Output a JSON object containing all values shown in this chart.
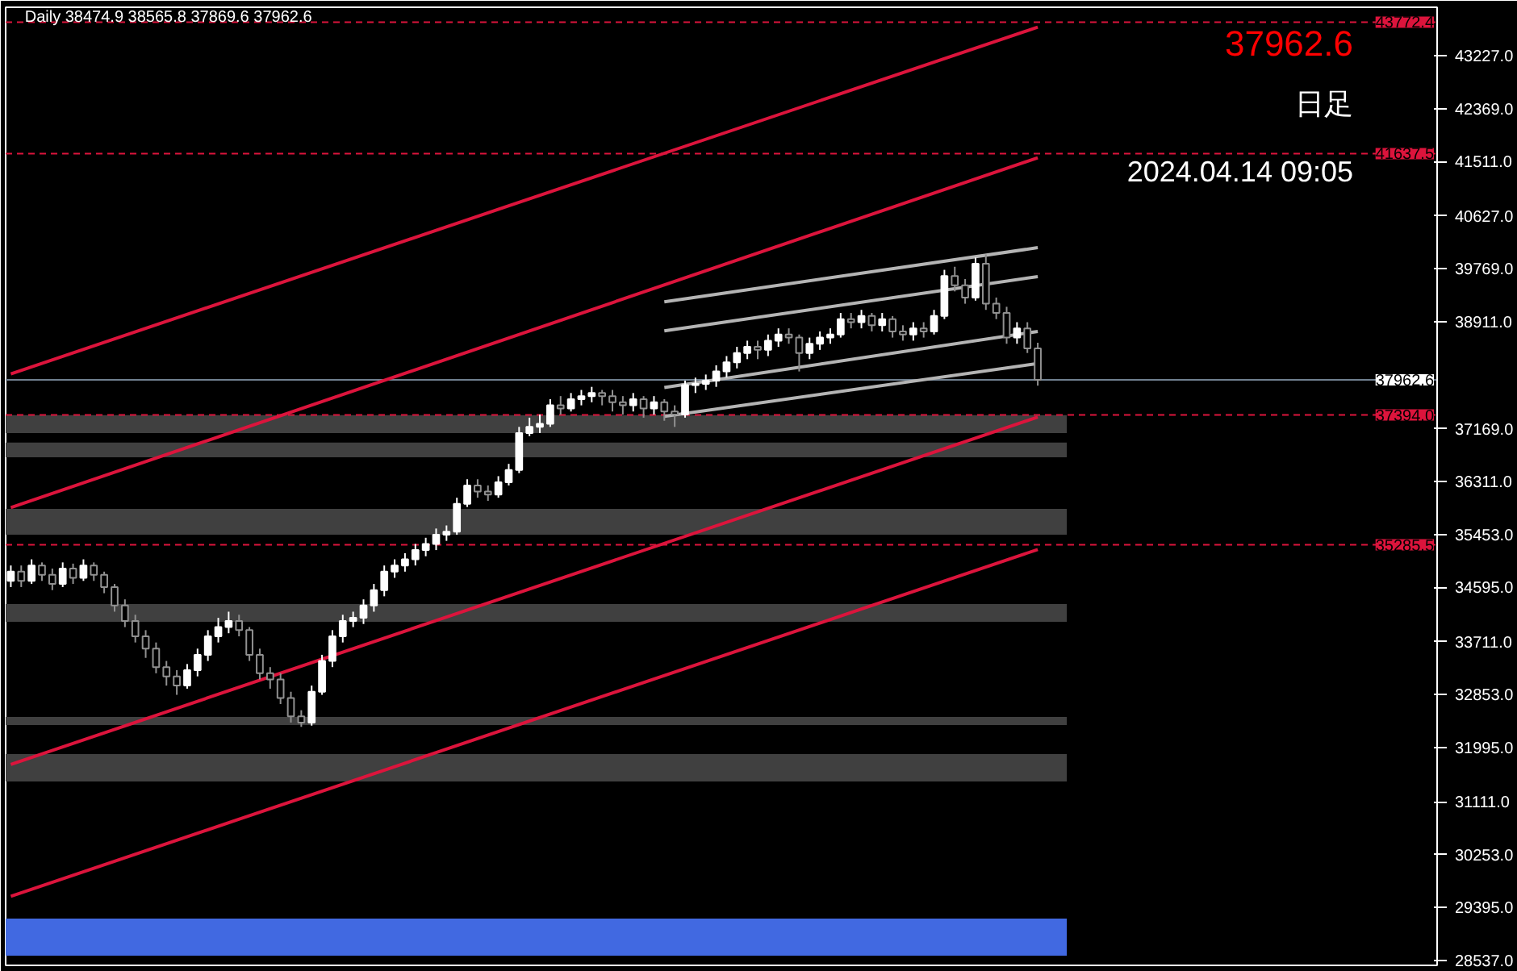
{
  "chart_data": {
    "type": "candlestick",
    "title": "Daily  38474.9 38565.8 37869.6 37962.6",
    "annotations": [
      "37962.6",
      "日足",
      "2024.04.14 09:05"
    ],
    "categories": [
      null,
      null,
      null,
      null,
      null,
      null,
      null,
      null,
      null,
      null,
      null,
      null,
      null,
      null,
      null,
      null,
      null,
      null,
      null,
      null,
      null,
      null,
      null,
      null,
      null,
      null,
      null,
      null,
      null,
      null,
      null,
      null,
      null,
      null,
      null,
      null,
      null,
      null,
      null,
      null,
      null,
      null,
      null,
      null,
      null,
      null,
      null,
      null,
      null,
      null,
      null,
      null,
      null,
      null,
      null,
      null,
      null,
      null,
      null,
      null,
      null,
      null,
      null,
      null,
      null,
      null,
      null,
      null,
      null,
      null,
      null,
      null,
      null,
      null,
      null,
      null,
      null,
      null,
      null,
      null,
      null,
      null,
      null,
      null,
      null,
      null,
      null,
      null,
      null,
      null,
      null,
      null,
      null,
      null,
      null,
      null,
      null,
      null,
      null,
      null,
      null,
      null,
      null,
      null,
      null,
      null,
      null,
      null,
      null,
      null,
      null,
      null,
      null,
      null,
      null,
      null,
      null,
      null,
      null,
      null,
      null,
      null,
      null,
      null,
      null,
      null,
      null,
      null,
      null,
      null,
      null,
      null,
      null,
      null,
      null,
      null,
      null,
      null
    ],
    "ohlc": [
      [
        34700,
        34950,
        34600,
        34850
      ],
      [
        34850,
        34950,
        34600,
        34700
      ],
      [
        34700,
        35050,
        34650,
        34950
      ],
      [
        34950,
        35000,
        34700,
        34800
      ],
      [
        34800,
        34900,
        34550,
        34650
      ],
      [
        34650,
        35000,
        34600,
        34900
      ],
      [
        34900,
        34980,
        34650,
        34750
      ],
      [
        34750,
        35050,
        34700,
        34950
      ],
      [
        34950,
        35000,
        34700,
        34800
      ],
      [
        34800,
        34850,
        34500,
        34600
      ],
      [
        34600,
        34650,
        34200,
        34300
      ],
      [
        34300,
        34400,
        33950,
        34050
      ],
      [
        34050,
        34150,
        33700,
        33800
      ],
      [
        33800,
        33900,
        33450,
        33600
      ],
      [
        33600,
        33700,
        33200,
        33300
      ],
      [
        33300,
        33400,
        33000,
        33150
      ],
      [
        33150,
        33250,
        32850,
        33000
      ],
      [
        33000,
        33350,
        32950,
        33250
      ],
      [
        33250,
        33600,
        33150,
        33500
      ],
      [
        33500,
        33900,
        33400,
        33800
      ],
      [
        33800,
        34100,
        33700,
        33950
      ],
      [
        33950,
        34200,
        33850,
        34050
      ],
      [
        34050,
        34150,
        33800,
        33900
      ],
      [
        33900,
        33950,
        33400,
        33500
      ],
      [
        33500,
        33600,
        33100,
        33200
      ],
      [
        33200,
        33300,
        32950,
        33100
      ],
      [
        33100,
        33200,
        32700,
        32800
      ],
      [
        32800,
        32900,
        32400,
        32500
      ],
      [
        32500,
        32600,
        32330,
        32400
      ],
      [
        32400,
        33000,
        32350,
        32900
      ],
      [
        32900,
        33500,
        32850,
        33400
      ],
      [
        33400,
        33900,
        33300,
        33800
      ],
      [
        33800,
        34150,
        33700,
        34050
      ],
      [
        34050,
        34200,
        33950,
        34100
      ],
      [
        34100,
        34400,
        34000,
        34300
      ],
      [
        34300,
        34650,
        34200,
        34550
      ],
      [
        34550,
        34950,
        34450,
        34850
      ],
      [
        34850,
        35050,
        34750,
        34950
      ],
      [
        34950,
        35150,
        34850,
        35050
      ],
      [
        35050,
        35300,
        34950,
        35200
      ],
      [
        35200,
        35400,
        35100,
        35300
      ],
      [
        35300,
        35550,
        35200,
        35450
      ],
      [
        35450,
        35600,
        35350,
        35500
      ],
      [
        35500,
        36050,
        35450,
        35950
      ],
      [
        35950,
        36350,
        35900,
        36250
      ],
      [
        36250,
        36350,
        36050,
        36150
      ],
      [
        36150,
        36250,
        36000,
        36100
      ],
      [
        36100,
        36400,
        36050,
        36300
      ],
      [
        36300,
        36600,
        36250,
        36500
      ],
      [
        36500,
        37200,
        36450,
        37100
      ],
      [
        37100,
        37350,
        37050,
        37200
      ],
      [
        37200,
        37400,
        37100,
        37250
      ],
      [
        37250,
        37650,
        37200,
        37550
      ],
      [
        37550,
        37700,
        37400,
        37500
      ],
      [
        37500,
        37750,
        37450,
        37650
      ],
      [
        37650,
        37800,
        37550,
        37700
      ],
      [
        37700,
        37850,
        37600,
        37750
      ],
      [
        37750,
        37800,
        37550,
        37700
      ],
      [
        37700,
        37800,
        37450,
        37600
      ],
      [
        37600,
        37700,
        37400,
        37550
      ],
      [
        37550,
        37750,
        37450,
        37650
      ],
      [
        37650,
        37700,
        37350,
        37500
      ],
      [
        37500,
        37700,
        37400,
        37600
      ],
      [
        37600,
        37650,
        37300,
        37450
      ],
      [
        37450,
        37550,
        37200,
        37400
      ],
      [
        37400,
        37950,
        37350,
        37880
      ],
      [
        37880,
        38000,
        37750,
        37900
      ],
      [
        37900,
        38050,
        37800,
        37950
      ],
      [
        37950,
        38200,
        37850,
        38100
      ],
      [
        38100,
        38350,
        38000,
        38250
      ],
      [
        38250,
        38500,
        38150,
        38400
      ],
      [
        38400,
        38600,
        38300,
        38500
      ],
      [
        38500,
        38600,
        38300,
        38450
      ],
      [
        38450,
        38700,
        38350,
        38600
      ],
      [
        38600,
        38800,
        38500,
        38700
      ],
      [
        38700,
        38800,
        38550,
        38650
      ],
      [
        38650,
        38700,
        38100,
        38400
      ],
      [
        38400,
        38650,
        38300,
        38550
      ],
      [
        38550,
        38750,
        38450,
        38650
      ],
      [
        38650,
        38800,
        38550,
        38700
      ],
      [
        38700,
        39050,
        38650,
        38950
      ],
      [
        38950,
        39050,
        38800,
        38900
      ],
      [
        38900,
        39100,
        38800,
        39000
      ],
      [
        39000,
        39050,
        38750,
        38850
      ],
      [
        38850,
        39050,
        38750,
        38950
      ],
      [
        38950,
        39000,
        38650,
        38750
      ],
      [
        38750,
        38850,
        38600,
        38700
      ],
      [
        38700,
        38900,
        38600,
        38800
      ],
      [
        38800,
        38900,
        38650,
        38750
      ],
      [
        38750,
        39100,
        38700,
        39000
      ],
      [
        39000,
        39750,
        38950,
        39650
      ],
      [
        39650,
        39800,
        39400,
        39500
      ],
      [
        39500,
        39600,
        39200,
        39300
      ],
      [
        39300,
        39950,
        39250,
        39850
      ],
      [
        39850,
        40000,
        39100,
        39200
      ],
      [
        39200,
        39300,
        38950,
        39050
      ],
      [
        39050,
        39150,
        38550,
        38650
      ],
      [
        38650,
        38900,
        38550,
        38800
      ],
      [
        38800,
        38900,
        38400,
        38474.9
      ],
      [
        38474.9,
        38565.8,
        37869.6,
        37962.6
      ],
      null,
      null,
      null,
      null,
      null,
      null,
      null,
      null,
      null,
      null,
      null,
      null,
      null,
      null,
      null,
      null,
      null,
      null,
      null,
      null,
      null,
      null,
      null,
      null,
      null,
      null,
      null,
      null,
      null,
      null,
      null,
      null,
      null,
      null,
      null,
      null,
      null,
      null
    ],
    "series": [
      {
        "type": "line",
        "color": "#dc143c",
        "values": [
          38060,
          null,
          null,
          null,
          null,
          null,
          null,
          null,
          null,
          null,
          null,
          null,
          null,
          null,
          null,
          null,
          null,
          null,
          null,
          null,
          null,
          null,
          null,
          null,
          null,
          null,
          null,
          null,
          null,
          null,
          null,
          null,
          null,
          null,
          null,
          null,
          null,
          null,
          null,
          null,
          null,
          null,
          null,
          null,
          null,
          null,
          null,
          null,
          null,
          null,
          null,
          null,
          null,
          null,
          null,
          null,
          null,
          null,
          null,
          null,
          null,
          null,
          null,
          null,
          null,
          null,
          null,
          null,
          null,
          null,
          null,
          null,
          null,
          null,
          null,
          null,
          null,
          null,
          null,
          null,
          null,
          null,
          null,
          null,
          null,
          null,
          null,
          null,
          null,
          null,
          null,
          null,
          null,
          null,
          null,
          null,
          null,
          null,
          null,
          43690,
          null,
          null,
          null,
          null,
          null,
          null,
          null,
          null,
          null,
          null,
          null,
          null,
          null,
          null,
          null,
          null,
          null,
          null,
          null,
          null,
          null,
          null,
          null,
          null,
          null,
          null,
          null,
          null,
          null,
          null,
          null,
          null,
          null,
          null,
          null,
          null,
          null,
          null
        ]
      },
      {
        "type": "line",
        "color": "#dc143c",
        "values": [
          35890,
          null,
          null,
          null,
          null,
          null,
          null,
          null,
          null,
          null,
          null,
          null,
          null,
          null,
          null,
          null,
          null,
          null,
          null,
          null,
          null,
          null,
          null,
          null,
          null,
          null,
          null,
          null,
          null,
          null,
          null,
          null,
          null,
          null,
          null,
          null,
          null,
          null,
          null,
          null,
          null,
          null,
          null,
          null,
          null,
          null,
          null,
          null,
          null,
          null,
          null,
          null,
          null,
          null,
          null,
          null,
          null,
          null,
          null,
          null,
          null,
          null,
          null,
          null,
          null,
          null,
          null,
          null,
          null,
          null,
          null,
          null,
          null,
          null,
          null,
          null,
          null,
          null,
          null,
          null,
          null,
          null,
          null,
          null,
          null,
          null,
          null,
          null,
          null,
          null,
          null,
          null,
          null,
          null,
          null,
          null,
          null,
          null,
          null,
          41570,
          null,
          null,
          null,
          null,
          null,
          null,
          null,
          null,
          null,
          null,
          null,
          null,
          null,
          null,
          null,
          null,
          null,
          null,
          null,
          null,
          null,
          null,
          null,
          null,
          null,
          null,
          null,
          null,
          null,
          null,
          null,
          null,
          null,
          null,
          null,
          null,
          null,
          null
        ]
      },
      {
        "type": "line",
        "color": "#dc143c",
        "values": [
          31720,
          null,
          null,
          null,
          null,
          null,
          null,
          null,
          null,
          null,
          null,
          null,
          null,
          null,
          null,
          null,
          null,
          null,
          null,
          null,
          null,
          null,
          null,
          null,
          null,
          null,
          null,
          null,
          null,
          null,
          null,
          null,
          null,
          null,
          null,
          null,
          null,
          null,
          null,
          null,
          null,
          null,
          null,
          null,
          null,
          null,
          null,
          null,
          null,
          null,
          null,
          null,
          null,
          null,
          null,
          null,
          null,
          null,
          null,
          null,
          null,
          null,
          null,
          null,
          null,
          null,
          null,
          null,
          null,
          null,
          null,
          null,
          null,
          null,
          null,
          null,
          null,
          null,
          null,
          null,
          null,
          null,
          null,
          null,
          null,
          null,
          null,
          null,
          null,
          null,
          null,
          null,
          null,
          null,
          null,
          null,
          null,
          null,
          null,
          37360,
          null,
          null,
          null,
          null,
          null,
          null,
          null,
          null,
          null,
          null,
          null,
          null,
          null,
          null,
          null,
          null,
          null,
          null,
          null,
          null,
          null,
          null,
          null,
          null,
          null,
          null,
          null,
          null,
          null,
          null,
          null,
          null,
          null,
          null,
          null,
          null,
          null,
          null
        ]
      },
      {
        "type": "line",
        "color": "#dc143c",
        "values": [
          29580,
          null,
          null,
          null,
          null,
          null,
          null,
          null,
          null,
          null,
          null,
          null,
          null,
          null,
          null,
          null,
          null,
          null,
          null,
          null,
          null,
          null,
          null,
          null,
          null,
          null,
          null,
          null,
          null,
          null,
          null,
          null,
          null,
          null,
          null,
          null,
          null,
          null,
          null,
          null,
          null,
          null,
          null,
          null,
          null,
          null,
          null,
          null,
          null,
          null,
          null,
          null,
          null,
          null,
          null,
          null,
          null,
          null,
          null,
          null,
          null,
          null,
          null,
          null,
          null,
          null,
          null,
          null,
          null,
          null,
          null,
          null,
          null,
          null,
          null,
          null,
          null,
          null,
          null,
          null,
          null,
          null,
          null,
          null,
          null,
          null,
          null,
          null,
          null,
          null,
          null,
          null,
          null,
          null,
          null,
          null,
          null,
          null,
          null,
          35210,
          null,
          null,
          null,
          null,
          null,
          null,
          null,
          null,
          null,
          null,
          null,
          null,
          null,
          null,
          null,
          null,
          null,
          null,
          null,
          null,
          null,
          null,
          null,
          null,
          null,
          null,
          null,
          null,
          null,
          null,
          null,
          null,
          null,
          null,
          null,
          null,
          null,
          null
        ]
      },
      {
        "type": "line",
        "color": "#b4b4b4",
        "values": [
          null,
          null,
          null,
          null,
          null,
          null,
          null,
          null,
          null,
          null,
          null,
          null,
          null,
          null,
          null,
          null,
          null,
          null,
          null,
          null,
          null,
          null,
          null,
          null,
          null,
          null,
          null,
          null,
          null,
          null,
          null,
          null,
          null,
          null,
          null,
          null,
          null,
          null,
          null,
          null,
          null,
          null,
          null,
          null,
          null,
          null,
          null,
          null,
          null,
          null,
          null,
          null,
          null,
          null,
          null,
          null,
          null,
          null,
          null,
          null,
          null,
          null,
          null,
          39230,
          null,
          null,
          null,
          null,
          null,
          null,
          null,
          null,
          null,
          null,
          null,
          null,
          null,
          null,
          null,
          null,
          null,
          null,
          null,
          null,
          null,
          null,
          null,
          null,
          null,
          null,
          null,
          null,
          null,
          null,
          null,
          null,
          null,
          null,
          null,
          40110,
          null,
          null,
          null,
          null,
          null,
          null,
          null,
          null,
          null,
          null,
          null,
          null,
          null,
          null,
          null,
          null,
          null,
          null,
          null,
          null,
          null,
          null,
          null,
          null,
          null,
          null,
          null,
          null,
          null,
          null,
          null,
          null,
          null,
          null,
          null,
          null,
          null,
          null
        ]
      },
      {
        "type": "line",
        "color": "#b4b4b4",
        "values": [
          null,
          null,
          null,
          null,
          null,
          null,
          null,
          null,
          null,
          null,
          null,
          null,
          null,
          null,
          null,
          null,
          null,
          null,
          null,
          null,
          null,
          null,
          null,
          null,
          null,
          null,
          null,
          null,
          null,
          null,
          null,
          null,
          null,
          null,
          null,
          null,
          null,
          null,
          null,
          null,
          null,
          null,
          null,
          null,
          null,
          null,
          null,
          null,
          null,
          null,
          null,
          null,
          null,
          null,
          null,
          null,
          null,
          null,
          null,
          null,
          null,
          null,
          null,
          38760,
          null,
          null,
          null,
          null,
          null,
          null,
          null,
          null,
          null,
          null,
          null,
          null,
          null,
          null,
          null,
          null,
          null,
          null,
          null,
          null,
          null,
          null,
          null,
          null,
          null,
          null,
          null,
          null,
          null,
          null,
          null,
          null,
          null,
          null,
          null,
          39640,
          null,
          null,
          null,
          null,
          null,
          null,
          null,
          null,
          null,
          null,
          null,
          null,
          null,
          null,
          null,
          null,
          null,
          null,
          null,
          null,
          null,
          null,
          null,
          null,
          null,
          null,
          null,
          null,
          null,
          null,
          null,
          null,
          null,
          null,
          null,
          null,
          null,
          null
        ]
      },
      {
        "type": "line",
        "color": "#b4b4b4",
        "values": [
          null,
          null,
          null,
          null,
          null,
          null,
          null,
          null,
          null,
          null,
          null,
          null,
          null,
          null,
          null,
          null,
          null,
          null,
          null,
          null,
          null,
          null,
          null,
          null,
          null,
          null,
          null,
          null,
          null,
          null,
          null,
          null,
          null,
          null,
          null,
          null,
          null,
          null,
          null,
          null,
          null,
          null,
          null,
          null,
          null,
          null,
          null,
          null,
          null,
          null,
          null,
          null,
          null,
          null,
          null,
          null,
          null,
          null,
          null,
          null,
          null,
          null,
          null,
          37840,
          null,
          null,
          null,
          null,
          null,
          null,
          null,
          null,
          null,
          null,
          null,
          null,
          null,
          null,
          null,
          null,
          null,
          null,
          null,
          null,
          null,
          null,
          null,
          null,
          null,
          null,
          null,
          null,
          null,
          null,
          null,
          null,
          null,
          null,
          null,
          38750,
          null,
          null,
          null,
          null,
          null,
          null,
          null,
          null,
          null,
          null,
          null,
          null,
          null,
          null,
          null,
          null,
          null,
          null,
          null,
          null,
          null,
          null,
          null,
          null,
          null,
          null,
          null,
          null,
          null,
          null,
          null,
          null,
          null,
          null,
          null,
          null,
          null,
          null
        ]
      },
      {
        "type": "line",
        "color": "#b4b4b4",
        "values": [
          null,
          null,
          null,
          null,
          null,
          null,
          null,
          null,
          null,
          null,
          null,
          null,
          null,
          null,
          null,
          null,
          null,
          null,
          null,
          null,
          null,
          null,
          null,
          null,
          null,
          null,
          null,
          null,
          null,
          null,
          null,
          null,
          null,
          null,
          null,
          null,
          null,
          null,
          null,
          null,
          null,
          null,
          null,
          null,
          null,
          null,
          null,
          null,
          null,
          null,
          null,
          null,
          null,
          null,
          null,
          null,
          null,
          null,
          null,
          null,
          null,
          null,
          null,
          37370,
          null,
          null,
          null,
          null,
          null,
          null,
          null,
          null,
          null,
          null,
          null,
          null,
          null,
          null,
          null,
          null,
          null,
          null,
          null,
          null,
          null,
          null,
          null,
          null,
          null,
          null,
          null,
          null,
          null,
          null,
          null,
          null,
          null,
          null,
          null,
          38230,
          null,
          null,
          null,
          null,
          null,
          null,
          null,
          null,
          null,
          null,
          null,
          null,
          null,
          null,
          null,
          null,
          null,
          null,
          null,
          null,
          null,
          null,
          null,
          null,
          null,
          null,
          null,
          null,
          null,
          null,
          null,
          null,
          null,
          null,
          null,
          null,
          null,
          null
        ]
      }
    ],
    "ref_lines": [
      {
        "axis": "y",
        "value": 43772.4,
        "label": "43772.4",
        "color": "#dc143c",
        "line_style": "dashed"
      },
      {
        "axis": "y",
        "value": 41637.5,
        "label": "41637.5",
        "color": "#dc143c",
        "line_style": "dashed"
      },
      {
        "axis": "y",
        "value": 37962.6,
        "label": "37962.6",
        "color": "#708090",
        "line_style": "solid"
      },
      {
        "axis": "y",
        "value": 37394.0,
        "label": "37394.0",
        "color": "#dc143c",
        "line_style": "dashed"
      },
      {
        "axis": "y",
        "value": 35285.5,
        "label": "35285.5",
        "color": "#dc143c",
        "line_style": "dashed"
      }
    ],
    "bands": [
      {
        "axis": "y",
        "from": 37100,
        "to": 37390,
        "color": "#404040"
      },
      {
        "axis": "y",
        "from": 36707,
        "to": 36945,
        "color": "#404040"
      },
      {
        "axis": "y",
        "from": 35450,
        "to": 35870,
        "color": "#404040"
      },
      {
        "axis": "y",
        "from": 34036,
        "to": 34324,
        "color": "#404040"
      },
      {
        "axis": "y",
        "from": 32360,
        "to": 32491,
        "color": "#404040"
      },
      {
        "axis": "y",
        "from": 31444,
        "to": 31889,
        "color": "#404040"
      },
      {
        "axis": "y",
        "from": 28616,
        "to": 29218,
        "color": "#4169e1"
      }
    ],
    "ylim": [
      28458,
      44013
    ],
    "yticks": [
      {
        "value": 28537,
        "label": "28537.0"
      },
      {
        "value": 29395,
        "label": "29395.0"
      },
      {
        "value": 30253,
        "label": "30253.0"
      },
      {
        "value": 31111,
        "label": "31111.0"
      },
      {
        "value": 31995,
        "label": "31995.0"
      },
      {
        "value": 32853,
        "label": "32853.0"
      },
      {
        "value": 33711,
        "label": "33711.0"
      },
      {
        "value": 34595,
        "label": "34595.0"
      },
      {
        "value": 35453,
        "label": "35453.0"
      },
      {
        "value": 36311,
        "label": "36311.0"
      },
      {
        "value": 37169,
        "label": "37169.0"
      },
      {
        "value": 38911,
        "label": "38911.0"
      },
      {
        "value": 39769,
        "label": "39769.0"
      },
      {
        "value": 40627,
        "label": "40627.0"
      },
      {
        "value": 41511,
        "label": "41511.0"
      },
      {
        "value": 42369,
        "label": "42369.0"
      },
      {
        "value": 43227,
        "label": "43227.0"
      }
    ],
    "grid": false,
    "tick_labels": "y"
  }
}
